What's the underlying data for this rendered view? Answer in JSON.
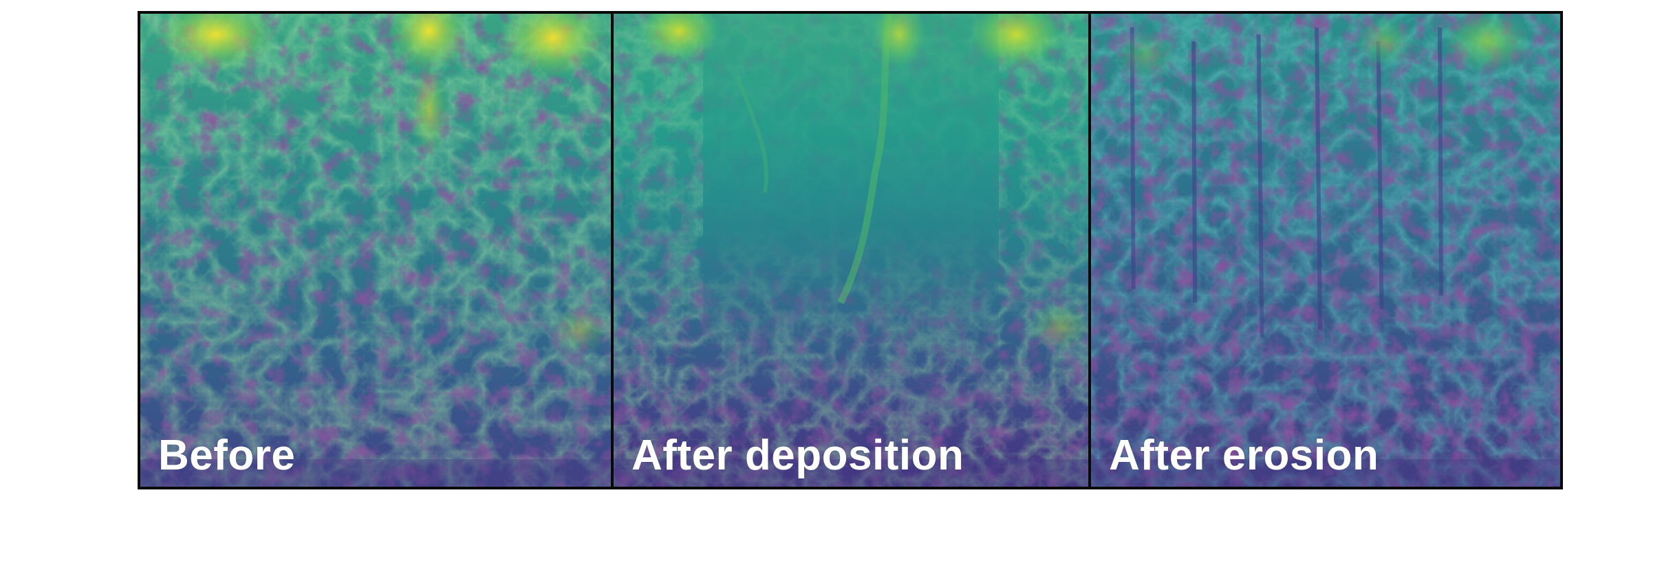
{
  "colormap": {
    "name": "viridis",
    "low": "#440154",
    "mid_low": "#3b528b",
    "mid": "#21918c",
    "mid_high": "#5ec962",
    "high": "#fde725"
  },
  "border_color": "#0a0a0a",
  "panels": [
    {
      "id": "before",
      "label": "Before"
    },
    {
      "id": "after-deposition",
      "label": "After deposition"
    },
    {
      "id": "after-erosion",
      "label": "After erosion"
    }
  ]
}
